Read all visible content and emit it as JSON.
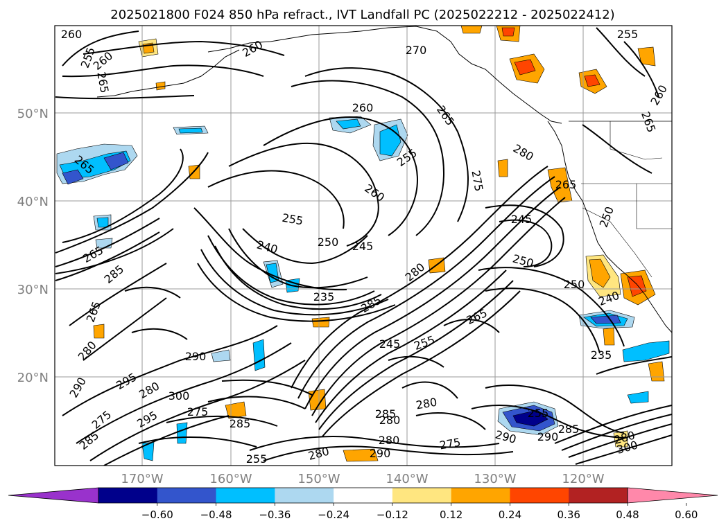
{
  "title": "2025021800 F024 850 hPa refract., IVT Landfall PC (2025022212 - 2025022412)",
  "lat_labels": [
    "50°N",
    "40°N",
    "30°N",
    "20°N"
  ],
  "lon_labels": [
    "170°W",
    "160°W",
    "150°W",
    "140°W",
    "130°W",
    "120°W"
  ],
  "colorbar": {
    "tick_labels": [
      "−0.60",
      "−0.48",
      "−0.36",
      "−0.24",
      "−0.12",
      "0.12",
      "0.24",
      "0.36",
      "0.48",
      "0.60"
    ],
    "colors": [
      "#9932cc",
      "#00008b",
      "#3355cc",
      "#00bfff",
      "#add8f0",
      "#ffffff",
      "#ffe680",
      "#ffa500",
      "#ff4500",
      "#b22222",
      "#ff88aa"
    ]
  },
  "contour_labels": [
    {
      "id": "c1",
      "text": "260"
    },
    {
      "id": "c2",
      "text": "255"
    },
    {
      "id": "c3",
      "text": "260"
    },
    {
      "id": "c4",
      "text": "265"
    },
    {
      "id": "c5",
      "text": "260"
    },
    {
      "id": "c6",
      "text": "270"
    },
    {
      "id": "c7",
      "text": "255"
    },
    {
      "id": "c8",
      "text": "260"
    },
    {
      "id": "c9",
      "text": "265"
    },
    {
      "id": "c10",
      "text": "260"
    },
    {
      "id": "c11",
      "text": "265"
    },
    {
      "id": "c12",
      "text": "255"
    },
    {
      "id": "c13",
      "text": "280"
    },
    {
      "id": "c14",
      "text": "265"
    },
    {
      "id": "c15",
      "text": "265"
    },
    {
      "id": "c16",
      "text": "275"
    },
    {
      "id": "c17",
      "text": "260"
    },
    {
      "id": "c18",
      "text": "245"
    },
    {
      "id": "c19",
      "text": "250"
    },
    {
      "id": "c20",
      "text": "255"
    },
    {
      "id": "c21",
      "text": "250"
    },
    {
      "id": "c22",
      "text": "245"
    },
    {
      "id": "c23",
      "text": "240"
    },
    {
      "id": "c24",
      "text": "250"
    },
    {
      "id": "c25",
      "text": "250"
    },
    {
      "id": "c26",
      "text": "265"
    },
    {
      "id": "c27",
      "text": "285"
    },
    {
      "id": "c28",
      "text": "235"
    },
    {
      "id": "c29",
      "text": "285"
    },
    {
      "id": "c30",
      "text": "280"
    },
    {
      "id": "c31",
      "text": "265"
    },
    {
      "id": "c32",
      "text": "245"
    },
    {
      "id": "c33",
      "text": "255"
    },
    {
      "id": "c34",
      "text": "240"
    },
    {
      "id": "c35",
      "text": "235"
    },
    {
      "id": "c36",
      "text": "265"
    },
    {
      "id": "c37",
      "text": "280"
    },
    {
      "id": "c38",
      "text": "290"
    },
    {
      "id": "c39",
      "text": "290"
    },
    {
      "id": "c40",
      "text": "295"
    },
    {
      "id": "c41",
      "text": "280"
    },
    {
      "id": "c42",
      "text": "300"
    },
    {
      "id": "c43",
      "text": "295"
    },
    {
      "id": "c44",
      "text": "275"
    },
    {
      "id": "c45",
      "text": "285"
    },
    {
      "id": "c46",
      "text": "280"
    },
    {
      "id": "c47",
      "text": "285"
    },
    {
      "id": "c48",
      "text": "280"
    },
    {
      "id": "c49",
      "text": "275"
    },
    {
      "id": "c50",
      "text": "290"
    },
    {
      "id": "c51",
      "text": "290"
    },
    {
      "id": "c52",
      "text": "285"
    },
    {
      "id": "c53",
      "text": "255"
    },
    {
      "id": "c54",
      "text": "290"
    },
    {
      "id": "c55",
      "text": "280"
    },
    {
      "id": "c56",
      "text": "300"
    },
    {
      "id": "c57",
      "text": "255"
    },
    {
      "id": "c58",
      "text": "280"
    },
    {
      "id": "c59",
      "text": "280"
    },
    {
      "id": "c60",
      "text": "285"
    },
    {
      "id": "c61",
      "text": "275"
    }
  ]
}
